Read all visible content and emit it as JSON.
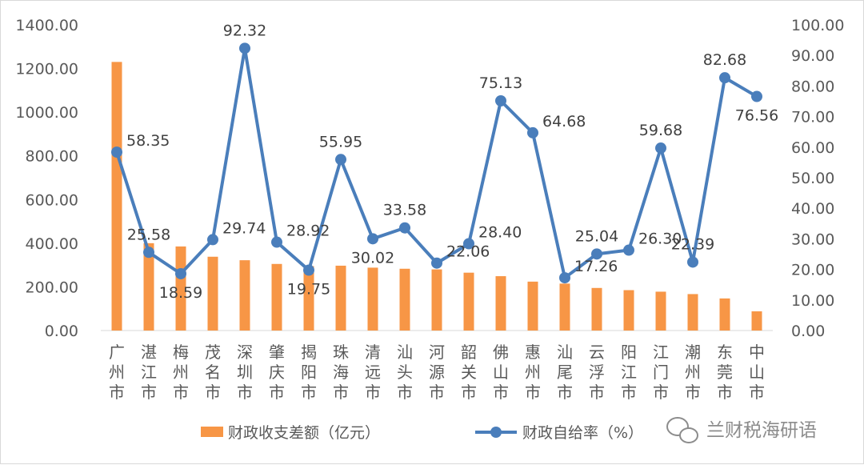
{
  "chart_data": {
    "type": "bar-line combo",
    "categories": [
      "广州市",
      "湛江市",
      "梅州市",
      "茂名市",
      "深圳市",
      "肇庆市",
      "揭阳市",
      "珠海市",
      "清远市",
      "汕头市",
      "河源市",
      "韶关市",
      "佛山市",
      "惠州市",
      "汕尾市",
      "云浮市",
      "阳江市",
      "江门市",
      "潮州市",
      "东莞市",
      "中山市"
    ],
    "series": [
      {
        "name": "财政收支差额（亿元）",
        "type": "bar",
        "axis": "left",
        "color": "#f79646",
        "values": [
          1230,
          400,
          385,
          338,
          322,
          305,
          295,
          297,
          288,
          283,
          280,
          265,
          249,
          224,
          215,
          195,
          185,
          178,
          167,
          147,
          88
        ]
      },
      {
        "name": "财政自给率（%）",
        "type": "line",
        "axis": "right",
        "color": "#4a7ebb",
        "values": [
          58.35,
          25.58,
          18.59,
          29.74,
          92.32,
          28.92,
          19.75,
          55.95,
          30.02,
          33.58,
          22.06,
          28.4,
          75.13,
          64.68,
          17.26,
          25.04,
          26.3,
          59.68,
          22.39,
          82.68,
          76.56
        ],
        "labels": [
          "58.35",
          "25.58",
          "18.59",
          "29.74",
          "92.32",
          "28.92",
          "19.75",
          "55.95",
          "30.02",
          "33.58",
          "22.06",
          "28.40",
          "75.13",
          "64.68",
          "17.26",
          "25.04",
          "26.30",
          "59.68",
          "22.39",
          "82.68",
          "76.56"
        ]
      }
    ],
    "y_left": {
      "range": [
        0,
        1400
      ],
      "ticks": [
        "0.00",
        "200.00",
        "400.00",
        "600.00",
        "800.00",
        "1000.00",
        "1200.00",
        "1400.00"
      ]
    },
    "y_right": {
      "range": [
        0,
        100
      ],
      "ticks": [
        "0.00",
        "10.00",
        "20.00",
        "30.00",
        "40.00",
        "50.00",
        "60.00",
        "70.00",
        "80.00",
        "90.00",
        "100.00"
      ]
    },
    "grid": false,
    "legend_position": "bottom"
  },
  "watermark": "兰财税海研语"
}
